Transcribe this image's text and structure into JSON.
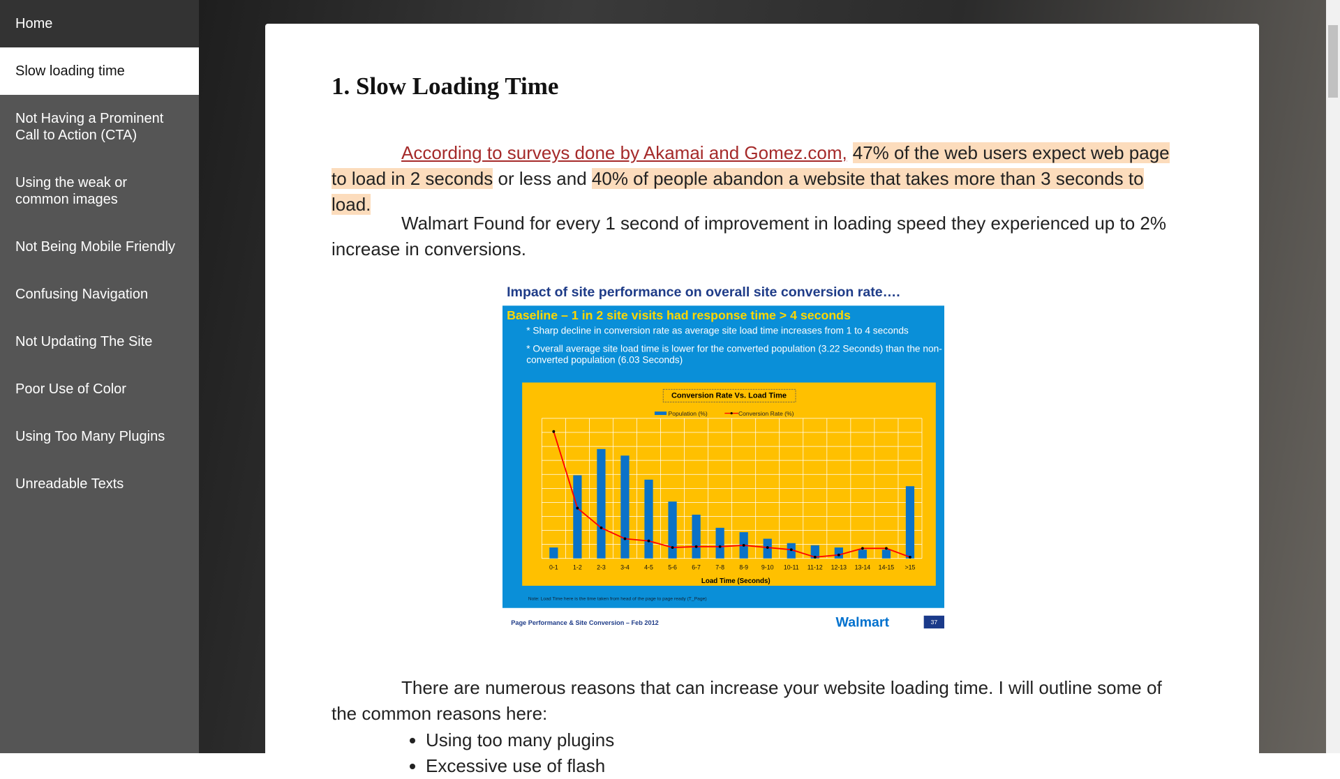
{
  "sidebar": {
    "items": [
      "Home",
      "Slow loading time",
      "Not Having a Prominent Call to Action (CTA)",
      "Using the weak or common images",
      "Not Being Mobile Friendly",
      "Confusing Navigation",
      "Not Updating The Site",
      "Poor Use of Color",
      "Using Too Many Plugins",
      "Unreadable Texts"
    ],
    "active": 1
  },
  "article": {
    "heading": "1. Slow Loading Time",
    "intro": [
      {
        "style": "link",
        "text": "According to surveys done by Akamai and Gomez.com,"
      },
      {
        "style": "highlight",
        "text": "47% of the web users expect web page to load in 2 seconds"
      },
      {
        "style": "plain",
        "text": " or less and "
      },
      {
        "style": "highlight",
        "text": "40% of people abandon a website that takes more than 3 seconds to load."
      }
    ],
    "paragraph": "Walmart Found for every 1 second of improvement in loading speed they experienced up to 2% increase in conversions.",
    "figure": {
      "title": "Impact of site performance on overall site conversion rate….",
      "baseline": "Baseline – 1 in 2 site visits had response time > 4 seconds",
      "bullets": [
        "* Sharp decline in conversion rate as average site load time increases from 1 to 4 seconds",
        "* Overall average site load time is lower for the converted population (3.22 Seconds) than the non-converted population (6.03 Seconds)"
      ],
      "chart": {
        "type": "bar-line",
        "title": "Conversion Rate Vs. Load Time",
        "categories": [
          "0-1",
          "1-2",
          "2-3",
          "3-4",
          "4-5",
          "5-6",
          "6-7",
          "7-8",
          "8-9",
          "9-10",
          "10-11",
          "11-12",
          "12-13",
          "13-14",
          "14-15",
          ">15"
        ],
        "series": [
          {
            "name": "Population (%)",
            "color": "#0a72c8",
            "kind": "bar",
            "values": [
              2.5,
              19,
              25,
              23.5,
              18,
              13,
              10,
              7,
              6,
              4.5,
              3.5,
              3,
              2.5,
              2,
              2,
              16.5
            ]
          },
          {
            "name": "Conversion Rate (%)",
            "color": "#ff0000",
            "kind": "line",
            "values": [
              29,
              11.5,
              7,
              4.5,
              4,
              2.5,
              2.7,
              2.7,
              3,
              2.5,
              2,
              0.3,
              0.8,
              2.3,
              2.3,
              0.3
            ]
          }
        ],
        "xlabel": "Load Time (Seconds)",
        "ylim": [
          0,
          32
        ],
        "grid": true
      },
      "note": "Note: Load Time here is the time taken from head of the page to page ready (T_Page)",
      "footer": "Page Performance & Site Conversion – Feb 2012",
      "brand": "Walmart",
      "page_number": "37"
    },
    "outro": "There are numerous reasons that can increase your website loading time. I will outline some of the common reasons here:",
    "reasons": [
      "Using too many plugins",
      "Excessive use of flash"
    ]
  }
}
